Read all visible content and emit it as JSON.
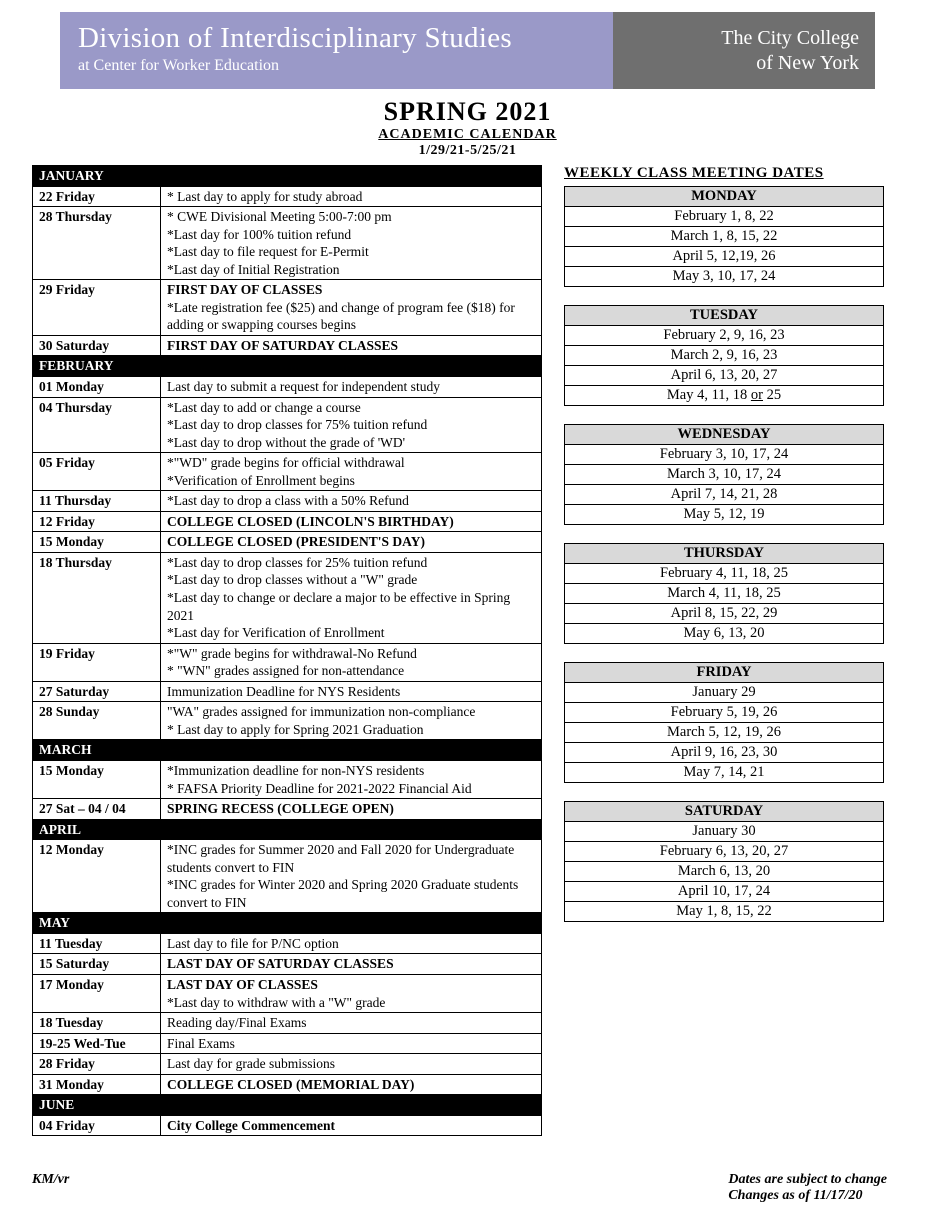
{
  "banner": {
    "left_line1": "Division of Interdisciplinary Studies",
    "left_line2": "at Center for Worker Education",
    "right_line1": "The City College",
    "right_line2": "of New York",
    "left_bg": "#9a99c8",
    "right_bg": "#6f6f6f"
  },
  "title": {
    "line1": "SPRING 2021",
    "line2": "ACADEMIC CALENDAR",
    "line3": "1/29/21-5/25/21"
  },
  "calendar": [
    {
      "type": "month",
      "label": "JANUARY"
    },
    {
      "type": "row",
      "date": "22 Friday",
      "lines": [
        "* Last day to apply for study abroad"
      ]
    },
    {
      "type": "row",
      "date": "28 Thursday",
      "lines": [
        "* CWE Divisional Meeting 5:00-7:00 pm",
        "*Last day for 100% tuition refund",
        "*Last day to file request for E-Permit",
        "*Last day of Initial Registration"
      ]
    },
    {
      "type": "row",
      "date": "29 Friday",
      "lines": [
        "FIRST DAY OF CLASSES",
        "*Late registration fee ($25) and change of program fee ($18) for adding or swapping courses begins"
      ],
      "bold_first": true
    },
    {
      "type": "row",
      "date": "30 Saturday",
      "lines": [
        "FIRST DAY OF SATURDAY CLASSES"
      ],
      "bold_first": true
    },
    {
      "type": "month",
      "label": "FEBRUARY"
    },
    {
      "type": "row",
      "date": "01 Monday",
      "lines": [
        "Last day to submit a request for independent study"
      ]
    },
    {
      "type": "row",
      "date": "04 Thursday",
      "lines": [
        "*Last day to add or change a course",
        "*Last day to drop classes for 75% tuition refund",
        "*Last day to drop without the grade of 'WD'"
      ]
    },
    {
      "type": "row",
      "date": "05 Friday",
      "lines": [
        "*\"WD\" grade begins for official withdrawal",
        "*Verification of Enrollment begins"
      ]
    },
    {
      "type": "row",
      "date": "11 Thursday",
      "lines": [
        "*Last day to drop a class with a 50% Refund"
      ]
    },
    {
      "type": "row",
      "date": "12 Friday",
      "lines": [
        "COLLEGE CLOSED (LINCOLN'S BIRTHDAY)"
      ],
      "bold_first": true
    },
    {
      "type": "row",
      "date": "15 Monday",
      "lines": [
        "COLLEGE CLOSED (PRESIDENT'S DAY)"
      ],
      "bold_first": true
    },
    {
      "type": "row",
      "date": "18 Thursday",
      "lines": [
        "*Last day to drop classes for 25% tuition refund",
        "*Last day to drop classes without a \"W\" grade",
        "*Last day to change or declare a major to be effective in Spring 2021",
        "*Last day for Verification of Enrollment"
      ]
    },
    {
      "type": "row",
      "date": "19 Friday",
      "lines": [
        "*\"W\" grade begins for withdrawal-No Refund",
        "* \"WN\" grades assigned for non-attendance"
      ]
    },
    {
      "type": "row",
      "date": "27 Saturday",
      "lines": [
        "Immunization Deadline for NYS Residents"
      ]
    },
    {
      "type": "row",
      "date": "28 Sunday",
      "lines": [
        "\"WA\" grades assigned for immunization non-compliance",
        "* Last day to apply for Spring 2021 Graduation"
      ]
    },
    {
      "type": "month",
      "label": "MARCH"
    },
    {
      "type": "row",
      "date": "15 Monday",
      "lines": [
        "*Immunization deadline for non-NYS residents",
        "* FAFSA Priority Deadline for 2021-2022 Financial Aid"
      ]
    },
    {
      "type": "row",
      "date": "27 Sat – 04 / 04",
      "lines": [
        "SPRING RECESS (COLLEGE OPEN)"
      ],
      "bold_first": true
    },
    {
      "type": "month",
      "label": "APRIL"
    },
    {
      "type": "row",
      "date": "12 Monday",
      "lines": [
        "*INC grades for Summer 2020 and Fall 2020 for Undergraduate students convert to FIN",
        "*INC grades for Winter 2020 and Spring 2020 Graduate students convert to FIN"
      ]
    },
    {
      "type": "month",
      "label": "MAY"
    },
    {
      "type": "row",
      "date": "11 Tuesday",
      "lines": [
        "Last day to file for P/NC option"
      ]
    },
    {
      "type": "row",
      "date": "15 Saturday",
      "lines": [
        "LAST DAY OF SATURDAY CLASSES"
      ],
      "bold_first": true
    },
    {
      "type": "row",
      "date": "17 Monday",
      "lines": [
        "LAST DAY OF CLASSES",
        "*Last day to withdraw with a \"W\" grade"
      ],
      "bold_first": true
    },
    {
      "type": "row",
      "date": "18 Tuesday",
      "lines": [
        "Reading day/Final Exams"
      ]
    },
    {
      "type": "row",
      "date": "19-25 Wed-Tue",
      "lines": [
        "Final Exams"
      ]
    },
    {
      "type": "row",
      "date": "28 Friday",
      "lines": [
        "Last day for grade submissions"
      ]
    },
    {
      "type": "row",
      "date": "31 Monday",
      "lines": [
        "COLLEGE CLOSED (MEMORIAL DAY)"
      ],
      "bold_first": true
    },
    {
      "type": "month",
      "label": "JUNE"
    },
    {
      "type": "row",
      "date": "04 Friday",
      "lines": [
        "City College Commencement"
      ],
      "bold_first": true
    }
  ],
  "weekly": {
    "title": "WEEKLY CLASS MEETING DATES",
    "days": [
      {
        "name": "MONDAY",
        "rows": [
          "February 1, 8, 22",
          "March 1, 8, 15, 22",
          "April 5, 12,19, 26",
          "May 3, 10, 17, 24"
        ]
      },
      {
        "name": "TUESDAY",
        "rows": [
          "February 2, 9, 16, 23",
          "March 2, 9, 16, 23",
          "April 6, 13, 20, 27",
          "May 4, 11, 18 or 25"
        ],
        "underline_or": true
      },
      {
        "name": "WEDNESDAY",
        "rows": [
          "February 3, 10, 17, 24",
          "March 3, 10, 17, 24",
          "April 7, 14, 21, 28",
          "May 5, 12, 19"
        ]
      },
      {
        "name": "THURSDAY",
        "rows": [
          "February 4, 11, 18, 25",
          "March 4, 11, 18, 25",
          "April 8, 15, 22, 29",
          "May 6, 13, 20"
        ]
      },
      {
        "name": "FRIDAY",
        "rows": [
          "January 29",
          "February 5, 19, 26",
          "March 5, 12, 19, 26",
          "April 9, 16, 23, 30",
          "May 7, 14, 21"
        ]
      },
      {
        "name": "SATURDAY",
        "rows": [
          "January 30",
          "February 6, 13, 20, 27",
          "March 6, 13, 20",
          "April 10, 17, 24",
          "May 1, 8, 15, 22"
        ]
      }
    ]
  },
  "footer": {
    "left": "KM/vr",
    "right1": "Dates are subject to change",
    "right2": "Changes as of 11/17/20"
  }
}
